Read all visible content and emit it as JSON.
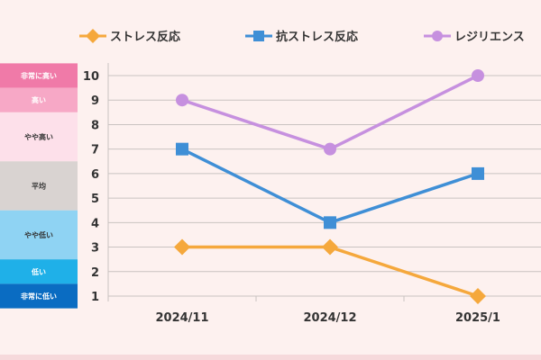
{
  "chart_data": {
    "type": "line",
    "categories": [
      "2024/11",
      "2024/12",
      "2025/1"
    ],
    "ylim": [
      1,
      10
    ],
    "yticks": [
      1,
      2,
      3,
      4,
      5,
      6,
      7,
      8,
      9,
      10
    ],
    "grid": true,
    "legend_position": "top",
    "series": [
      {
        "name": "ストレス反応",
        "values": [
          3,
          3,
          1
        ],
        "color": "#f5a83c",
        "marker": "diamond"
      },
      {
        "name": "抗ストレス反応",
        "values": [
          7,
          4,
          6
        ],
        "color": "#3f8fd6",
        "marker": "square"
      },
      {
        "name": "レジリエンス",
        "values": [
          9,
          7,
          10
        ],
        "color": "#c690df",
        "marker": "circle"
      }
    ],
    "level_bands": [
      {
        "label": "非常に高い",
        "from": 9.5,
        "to": 10.5,
        "color": "#f07aa8",
        "text_color": "#ffffff"
      },
      {
        "label": "高い",
        "from": 8.5,
        "to": 9.5,
        "color": "#f7a8c6",
        "text_color": "#ffffff"
      },
      {
        "label": "やや高い",
        "from": 6.5,
        "to": 8.5,
        "color": "#fde0ea",
        "text_color": "#333333"
      },
      {
        "label": "平均",
        "from": 4.5,
        "to": 6.5,
        "color": "#d9d3d1",
        "text_color": "#333333"
      },
      {
        "label": "やや低い",
        "from": 2.5,
        "to": 4.5,
        "color": "#8fd3f3",
        "text_color": "#333333"
      },
      {
        "label": "低い",
        "from": 1.5,
        "to": 2.5,
        "color": "#1fb0e8",
        "text_color": "#ffffff"
      },
      {
        "label": "非常に低い",
        "from": 0.5,
        "to": 1.5,
        "color": "#0a6cc2",
        "text_color": "#ffffff"
      }
    ]
  }
}
